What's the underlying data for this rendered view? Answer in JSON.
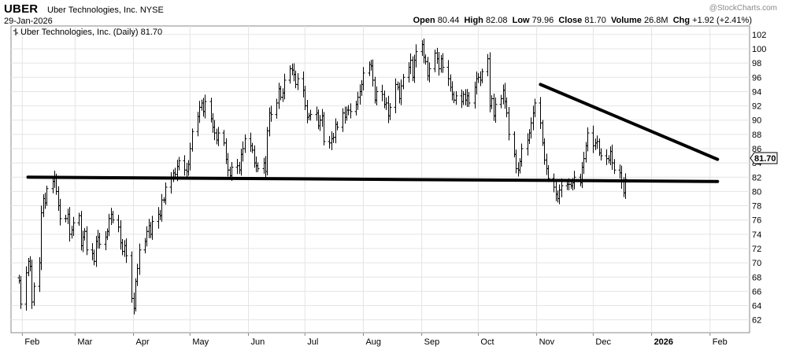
{
  "header": {
    "ticker": "UBER",
    "company": "Uber Technologies, Inc.",
    "exchange": "NYSE",
    "date": "29-Jan-2026",
    "watermark": "@StockCharts.com",
    "open_label": "Open",
    "open": "80.44",
    "high_label": "High",
    "high": "82.08",
    "low_label": "Low",
    "low": "79.96",
    "close_label": "Close",
    "close": "81.70",
    "volume_label": "Volume",
    "volume": "26.8M",
    "chg_label": "Chg",
    "chg": "+1.92 (+2.41%)"
  },
  "chart_data": {
    "type": "line",
    "style": "ohlc-bars",
    "legend": "Uber Technologies, Inc. (Daily) 81.70",
    "legend_placement": "top-left",
    "last_price_label": "81.70",
    "x_tick_labels": [
      "Feb",
      "Mar",
      "Apr",
      "May",
      "Jun",
      "Jul",
      "Aug",
      "Sep",
      "Oct",
      "Nov",
      "Dec",
      "2026",
      "Feb"
    ],
    "y_ticks": [
      62,
      64,
      66,
      68,
      70,
      72,
      74,
      76,
      78,
      80,
      82,
      84,
      86,
      88,
      90,
      92,
      94,
      96,
      98,
      100,
      102
    ],
    "ylim": [
      60.2,
      103.2
    ],
    "grid": true,
    "trendlines": [
      {
        "name": "support",
        "points": [
          [
            "2025-02-04",
            82.0
          ],
          [
            "2026-02-05",
            81.4
          ]
        ]
      },
      {
        "name": "resistance",
        "points": [
          [
            "2025-11-03",
            95.0
          ],
          [
            "2026-02-05",
            84.5
          ]
        ]
      }
    ],
    "series": [
      {
        "start_date": "2025-01-30",
        "interval": "trading-day",
        "close": [
          67.5,
          64.2,
          68.6,
          70.2,
          69.5,
          64.5,
          66.7,
          70.0,
          77.0,
          79.0,
          78.4,
          80.4,
          81.4,
          82.0,
          80.0,
          78.0,
          76.2,
          76.2,
          76.8,
          74.0,
          74.6,
          75.6,
          76.6,
          72.4,
          73.6,
          74.4,
          71.8,
          71.3,
          70.2,
          73.0,
          73.6,
          72.6,
          73.6,
          74.4,
          76.2,
          76.8,
          76.0,
          75.0,
          72.8,
          71.6,
          72.4,
          71.0,
          65.0,
          63.6,
          67.4,
          69.2,
          71.8,
          73.0,
          74.4,
          75.2,
          74.0,
          75.8,
          76.8,
          76.6,
          78.8,
          78.8,
          80.6,
          81.8,
          82.6,
          82.4,
          83.5,
          84.3,
          83.0,
          82.8,
          83.8,
          86.0,
          88.4,
          90.5,
          91.8,
          92.4,
          91.2,
          92.6,
          90.2,
          89.0,
          88.2,
          87.2,
          88.2,
          86.8,
          84.5,
          83.0,
          82.2,
          83.4,
          83.6,
          83.0,
          85.2,
          86.0,
          87.4,
          86.4,
          85.8,
          84.0,
          83.6,
          83.2,
          84.0,
          82.8,
          88.5,
          91.0,
          90.8,
          92.4,
          94.4,
          93.2,
          93.8,
          95.6,
          97.2,
          97.0,
          96.4,
          95.0,
          95.8,
          94.2,
          92.0,
          90.4,
          90.6,
          90.8,
          91.0,
          89.2,
          90.0,
          90.6,
          87.0,
          86.8,
          87.4,
          87.6,
          89.4,
          89.0,
          91.0,
          90.4,
          91.4,
          91.4,
          91.2,
          92.2,
          93.2,
          94.0,
          95.0,
          96.6,
          97.8,
          97.6,
          95.6,
          92.8,
          94.0,
          93.6,
          92.2,
          92.4,
          90.6,
          91.8,
          95.0,
          94.6,
          93.0,
          94.8,
          96.0,
          97.4,
          98.4,
          96.0,
          98.4,
          99.6,
          100.6,
          98.8,
          98.2,
          96.2,
          97.2,
          99.4,
          98.6,
          97.2,
          98.6,
          97.4,
          95.8,
          94.6,
          93.6,
          92.8,
          93.4,
          92.6,
          93.6,
          92.8,
          93.4,
          92.4,
          94.6,
          95.8,
          96.0,
          95.6,
          96.8,
          98.6,
          92.0,
          93.0,
          90.6,
          92.2,
          93.0,
          94.2,
          92.6,
          91.0,
          88.0,
          85.2,
          83.2,
          83.0,
          84.2,
          86.0,
          87.2,
          88.2,
          89.6,
          91.0,
          92.4,
          89.6,
          86.8,
          84.4,
          83.2,
          81.8,
          80.6,
          79.6,
          79.0,
          80.2,
          80.8,
          81.0,
          81.0,
          80.8,
          81.2,
          82.0,
          81.2,
          83.4,
          84.6,
          86.4,
          88.2,
          86.4,
          86.8,
          87.0,
          85.4,
          85.0,
          84.6,
          84.4,
          85.6,
          84.0,
          83.0,
          82.6,
          81.4,
          79.8,
          81.7
        ]
      }
    ]
  }
}
